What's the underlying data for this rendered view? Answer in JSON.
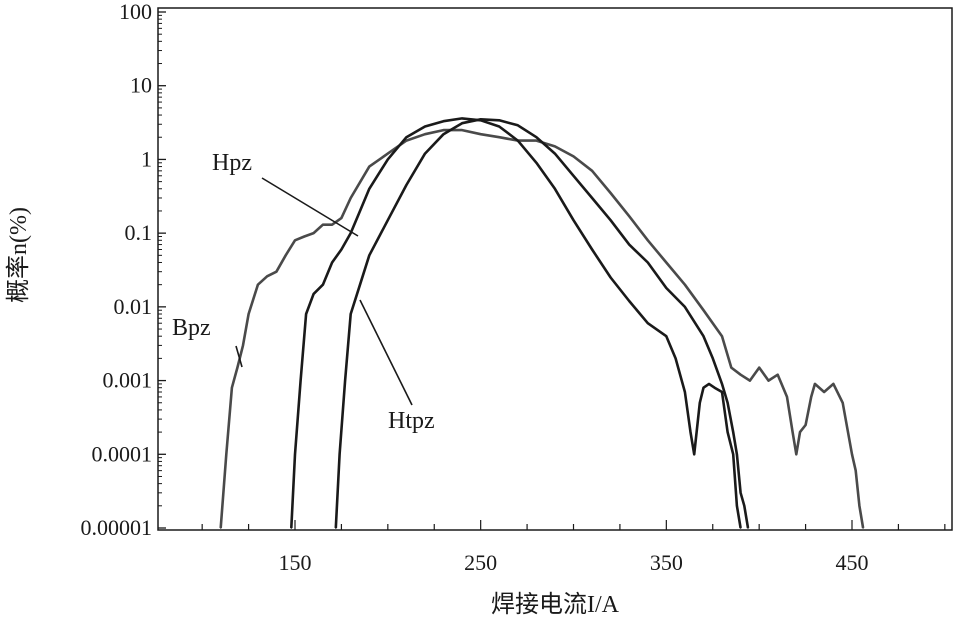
{
  "chart_data": {
    "type": "line",
    "xlabel": "焊接电流I/A",
    "ylabel": "概率n(%)",
    "x_ticks": [
      150,
      250,
      350,
      450
    ],
    "y_ticks": [
      {
        "value": 1e-05,
        "label": "0.00001"
      },
      {
        "value": 0.0001,
        "label": "0.0001"
      },
      {
        "value": 0.001,
        "label": "0.001"
      },
      {
        "value": 0.01,
        "label": "0.01"
      },
      {
        "value": 0.1,
        "label": "0.1"
      },
      {
        "value": 1,
        "label": "1"
      },
      {
        "value": 10,
        "label": "10"
      },
      {
        "value": 100,
        "label": "100"
      }
    ],
    "xlim": [
      80,
      500
    ],
    "ylim": [
      1e-05,
      100
    ],
    "y_scale": "log",
    "grid": false,
    "series": [
      {
        "name": "Bpz",
        "color": "#4a4a4a",
        "x": [
          110,
          113,
          116,
          119,
          122,
          125,
          130,
          135,
          140,
          145,
          150,
          155,
          160,
          165,
          170,
          175,
          180,
          190,
          200,
          210,
          220,
          230,
          240,
          250,
          260,
          270,
          280,
          290,
          300,
          310,
          320,
          330,
          340,
          350,
          360,
          370,
          380,
          385,
          390,
          395,
          400,
          405,
          410,
          415,
          418,
          420,
          422,
          425,
          428,
          430,
          435,
          440,
          445,
          450,
          452,
          454,
          456
        ],
        "y": [
          1e-05,
          0.0001,
          0.0008,
          0.0015,
          0.003,
          0.008,
          0.02,
          0.026,
          0.03,
          0.05,
          0.08,
          0.09,
          0.1,
          0.13,
          0.13,
          0.16,
          0.3,
          0.8,
          1.2,
          1.8,
          2.2,
          2.5,
          2.5,
          2.2,
          2.0,
          1.8,
          1.8,
          1.5,
          1.1,
          0.7,
          0.35,
          0.17,
          0.08,
          0.04,
          0.02,
          0.009,
          0.004,
          0.0015,
          0.0012,
          0.001,
          0.0015,
          0.001,
          0.0012,
          0.0006,
          0.0002,
          0.0001,
          0.0002,
          0.00025,
          0.0006,
          0.0009,
          0.0007,
          0.0009,
          0.0005,
          0.0001,
          6e-05,
          2e-05,
          1e-05
        ]
      },
      {
        "name": "Hpz",
        "color": "#1a1a1a",
        "x": [
          148,
          150,
          153,
          156,
          160,
          165,
          170,
          175,
          180,
          185,
          190,
          200,
          210,
          220,
          230,
          240,
          250,
          260,
          270,
          280,
          290,
          300,
          310,
          320,
          330,
          340,
          350,
          355,
          360,
          363,
          365,
          368,
          370,
          373,
          376,
          380,
          383,
          386,
          388,
          390
        ],
        "y": [
          1e-05,
          0.0001,
          0.001,
          0.008,
          0.015,
          0.02,
          0.04,
          0.06,
          0.1,
          0.2,
          0.4,
          1.0,
          2.0,
          2.8,
          3.3,
          3.6,
          3.4,
          2.8,
          1.8,
          0.9,
          0.4,
          0.15,
          0.06,
          0.025,
          0.012,
          0.006,
          0.004,
          0.002,
          0.0007,
          0.0002,
          0.0001,
          0.0005,
          0.0008,
          0.0009,
          0.0008,
          0.0007,
          0.0002,
          0.0001,
          2e-05,
          1e-05
        ]
      },
      {
        "name": "Htpz",
        "color": "#1a1a1a",
        "x": [
          172,
          174,
          177,
          180,
          185,
          190,
          200,
          210,
          220,
          230,
          240,
          250,
          260,
          270,
          280,
          290,
          300,
          310,
          320,
          330,
          340,
          350,
          360,
          370,
          375,
          380,
          383,
          386,
          388,
          390,
          392,
          394
        ],
        "y": [
          1e-05,
          0.0001,
          0.001,
          0.008,
          0.02,
          0.05,
          0.15,
          0.45,
          1.2,
          2.2,
          3.1,
          3.5,
          3.4,
          2.9,
          2.0,
          1.2,
          0.6,
          0.3,
          0.15,
          0.07,
          0.04,
          0.018,
          0.01,
          0.004,
          0.002,
          0.0009,
          0.0005,
          0.0002,
          0.0001,
          3e-05,
          2e-05,
          1e-05
        ]
      }
    ],
    "annotations": [
      {
        "text": "Hpz",
        "series": "Hpz"
      },
      {
        "text": "Bpz",
        "series": "Bpz"
      },
      {
        "text": "Htpz",
        "series": "Htpz"
      }
    ]
  }
}
